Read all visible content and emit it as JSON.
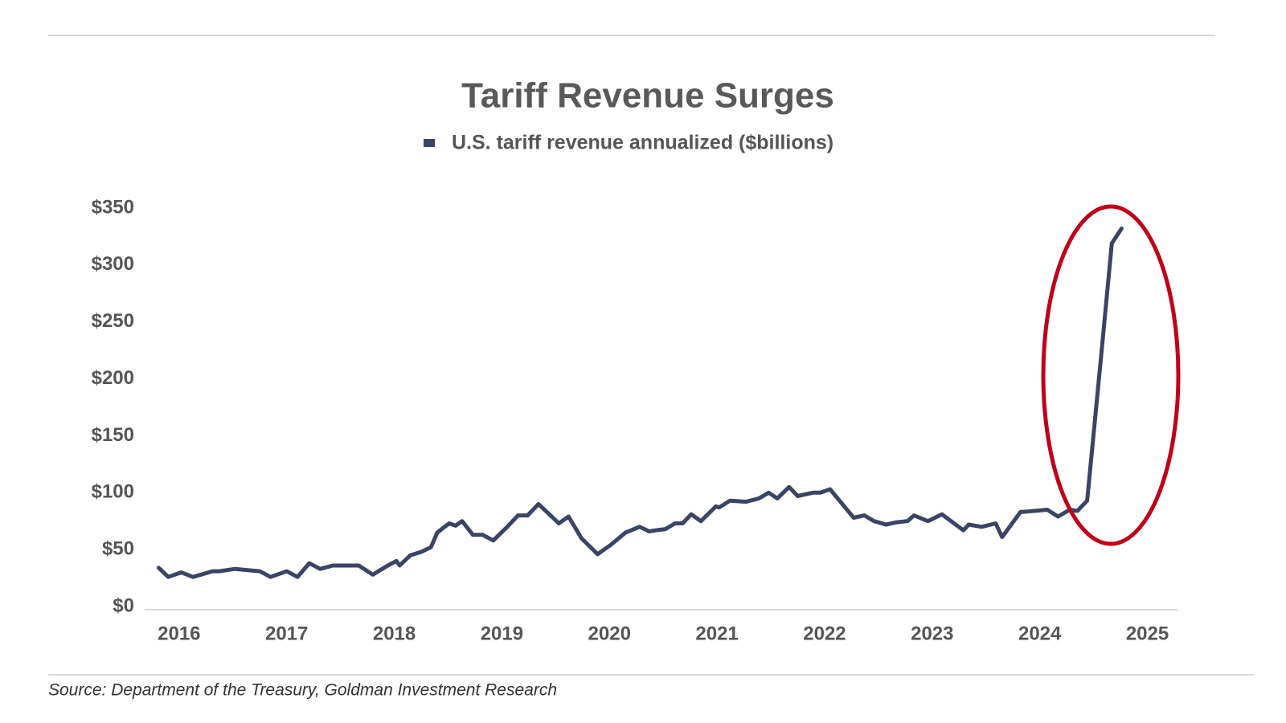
{
  "chart_data": {
    "type": "line",
    "title": "Tariff Revenue Surges",
    "source": "Source: Department of the Treasury, Goldman Investment Research",
    "x": [
      2015.81,
      2015.9,
      2016.02,
      2016.13,
      2016.31,
      2016.37,
      2016.52,
      2016.64,
      2016.75,
      2016.85,
      2017.0,
      2017.1,
      2017.21,
      2017.31,
      2017.43,
      2017.56,
      2017.67,
      2017.8,
      2017.94,
      2018.02,
      2018.05,
      2018.15,
      2018.25,
      2018.34,
      2018.4,
      2018.51,
      2018.57,
      2018.63,
      2018.73,
      2018.82,
      2018.92,
      2019.05,
      2019.15,
      2019.24,
      2019.34,
      2019.43,
      2019.53,
      2019.62,
      2019.74,
      2019.89,
      2020.01,
      2020.15,
      2020.28,
      2020.37,
      2020.43,
      2020.52,
      2020.61,
      2020.68,
      2020.76,
      2020.85,
      2020.99,
      2021.02,
      2021.12,
      2021.27,
      2021.39,
      2021.48,
      2021.56,
      2021.67,
      2021.75,
      2021.89,
      2021.96,
      2022.05,
      2022.27,
      2022.37,
      2022.46,
      2022.57,
      2022.67,
      2022.77,
      2022.83,
      2022.96,
      2023.09,
      2023.19,
      2023.29,
      2023.34,
      2023.46,
      2023.59,
      2023.65,
      2023.82,
      2023.95,
      2024.07,
      2024.17,
      2024.28,
      2024.35,
      2024.44,
      2024.57,
      2024.67,
      2024.76
    ],
    "series": [
      {
        "name": "U.S. tariff revenue annualized ($billions)",
        "color": "#3b4466",
        "values": [
          34,
          26,
          30,
          26,
          31,
          31,
          33,
          32,
          31,
          26,
          31,
          26,
          38,
          33,
          36,
          36,
          36,
          28,
          36,
          40,
          36,
          45,
          48,
          52,
          65,
          73,
          71,
          75,
          63,
          63,
          58,
          70,
          80,
          80,
          90,
          82,
          73,
          79,
          60,
          46,
          54,
          65,
          70,
          66,
          67,
          68,
          73,
          73,
          81,
          75,
          88,
          87,
          93,
          92,
          95,
          100,
          95,
          105,
          97,
          100,
          100,
          103,
          78,
          80,
          75,
          72,
          74,
          75,
          80,
          75,
          81,
          74,
          67,
          72,
          70,
          73,
          61,
          83,
          84,
          85,
          79,
          85,
          84,
          93,
          220,
          319,
          332
        ]
      }
    ],
    "xlim": [
      2015.68,
      2025.28
    ],
    "xticks": [
      2016,
      2017,
      2018,
      2019,
      2020,
      2021,
      2022,
      2023,
      2024,
      2025
    ],
    "ylim": [
      0,
      350
    ],
    "yticks": [
      {
        "value": 0,
        "label": "$0"
      },
      {
        "value": 50,
        "label": "$50"
      },
      {
        "value": 100,
        "label": "$100"
      },
      {
        "value": 150,
        "label": "$150"
      },
      {
        "value": 200,
        "label": "$200"
      },
      {
        "value": 250,
        "label": "$250"
      },
      {
        "value": 300,
        "label": "$300"
      },
      {
        "value": 350,
        "label": "$350"
      }
    ],
    "grid": false
  }
}
